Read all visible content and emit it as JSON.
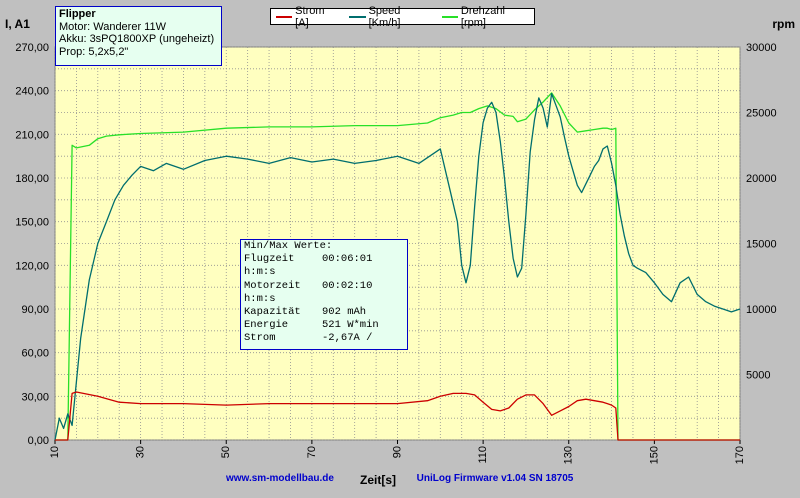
{
  "info": {
    "title": "Flipper",
    "lines": [
      "Motor: Wanderer 11W",
      "Akku: 3sPQ1800XP (ungeheizt)",
      "Prop: 5,2x5,2\""
    ]
  },
  "legend": [
    {
      "label": "Strom [A]",
      "color": "#cc0000"
    },
    {
      "label": "Speed [Km/h]",
      "color": "#006e6e"
    },
    {
      "label": "Drehzahl [rpm]",
      "color": "#28e028"
    }
  ],
  "stats": {
    "title": "Min/Max Werte:",
    "rows": [
      {
        "label": "Flugzeit",
        "value": "00:06:01"
      },
      {
        "label": "h:m:s",
        "value": ""
      },
      {
        "label": "Motorzeit",
        "value": "00:02:10"
      },
      {
        "label": "h:m:s",
        "value": ""
      },
      {
        "label": "Kapazität",
        "value": "902 mAh"
      },
      {
        "label": "Energie",
        "value": "521 W*min"
      },
      {
        "label": "Strom",
        "value": "-2,67A /"
      }
    ]
  },
  "footer": {
    "website": "www.sm-modellbau.de",
    "firmware": "UniLog Firmware v1.04 SN 18705"
  },
  "chart_data": {
    "type": "line",
    "xlabel": "Zeit[s]",
    "ylabel_left": "I, A1",
    "ylabel_right": "rpm",
    "xlim": [
      10,
      170
    ],
    "ylim_left": [
      0,
      270
    ],
    "ylim_right": [
      0,
      30000
    ],
    "x_ticks": [
      "10",
      "30",
      "50",
      "70",
      "90",
      "110",
      "130",
      "150",
      "170"
    ],
    "y_left_ticks": [
      "0,00",
      "30,00",
      "60,00",
      "90,00",
      "120,00",
      "150,00",
      "180,00",
      "210,00",
      "240,00",
      "270,00"
    ],
    "y_right_ticks": [
      "5000",
      "10000",
      "15000",
      "20000",
      "25000",
      "30000"
    ],
    "grid": true,
    "series": [
      {
        "name": "Strom [A]",
        "axis": "left",
        "color": "#cc0000",
        "x": [
          10,
          13,
          14,
          15,
          20,
          25,
          30,
          40,
          50,
          60,
          70,
          80,
          90,
          97,
          100,
          103,
          106,
          108,
          110,
          112,
          114,
          116,
          118,
          120,
          122,
          124,
          126,
          128,
          130,
          132,
          134,
          136,
          138,
          139,
          140,
          141,
          141.5,
          170
        ],
        "y": [
          0,
          0,
          32,
          33,
          30,
          26,
          25,
          25,
          24,
          25,
          25,
          25,
          25,
          27,
          30,
          32,
          32,
          31,
          26,
          21,
          20,
          22,
          28,
          31,
          31,
          25,
          17,
          20,
          23,
          27,
          28,
          27,
          26,
          25,
          24,
          22,
          0,
          0
        ]
      },
      {
        "name": "Speed [Km/h]",
        "axis": "left",
        "color": "#006e6e",
        "x": [
          10,
          11,
          12,
          13,
          14,
          15,
          16,
          18,
          20,
          22,
          24,
          26,
          28,
          30,
          33,
          36,
          40,
          45,
          50,
          55,
          60,
          65,
          70,
          75,
          80,
          85,
          90,
          95,
          100,
          102,
          104,
          105,
          106,
          107,
          108,
          109,
          110,
          111,
          112,
          113,
          114,
          115,
          116,
          117,
          118,
          119,
          120,
          121,
          122,
          123,
          124,
          125,
          126,
          127,
          128,
          129,
          130,
          131,
          132,
          133,
          134,
          135,
          136,
          137,
          138,
          139,
          140,
          141,
          142,
          143,
          144,
          145,
          146,
          148,
          150,
          152,
          154,
          156,
          158,
          160,
          162,
          164,
          166,
          168,
          170
        ],
        "y": [
          0,
          15,
          8,
          18,
          10,
          40,
          70,
          110,
          135,
          150,
          165,
          175,
          182,
          188,
          185,
          190,
          186,
          192,
          195,
          193,
          190,
          194,
          191,
          193,
          190,
          192,
          195,
          190,
          200,
          175,
          150,
          120,
          108,
          120,
          160,
          195,
          218,
          228,
          232,
          225,
          205,
          180,
          150,
          125,
          112,
          118,
          155,
          198,
          220,
          235,
          228,
          215,
          238,
          230,
          222,
          208,
          195,
          185,
          175,
          170,
          176,
          182,
          188,
          192,
          200,
          202,
          190,
          175,
          155,
          140,
          128,
          120,
          118,
          115,
          108,
          100,
          95,
          108,
          112,
          100,
          95,
          92,
          90,
          88,
          90
        ]
      },
      {
        "name": "Drehzahl [rpm]",
        "axis": "right",
        "color": "#28e028",
        "x": [
          10,
          13,
          14,
          15,
          18,
          20,
          22,
          25,
          30,
          40,
          50,
          60,
          70,
          80,
          90,
          97,
          100,
          103,
          105,
          107,
          109,
          111,
          113,
          115,
          117,
          118,
          120,
          122,
          124,
          126,
          128,
          130,
          132,
          134,
          136,
          138,
          139,
          140,
          141,
          141.5,
          170
        ],
        "y": [
          0,
          0,
          22500,
          22300,
          22500,
          23000,
          23200,
          23300,
          23400,
          23500,
          23800,
          23900,
          23900,
          24000,
          24000,
          24200,
          24600,
          24800,
          25000,
          25000,
          25300,
          25500,
          25300,
          24800,
          24700,
          24300,
          24500,
          25200,
          25800,
          26500,
          25500,
          24200,
          23500,
          23600,
          23700,
          23800,
          23800,
          23700,
          23800,
          0,
          0
        ]
      }
    ]
  }
}
